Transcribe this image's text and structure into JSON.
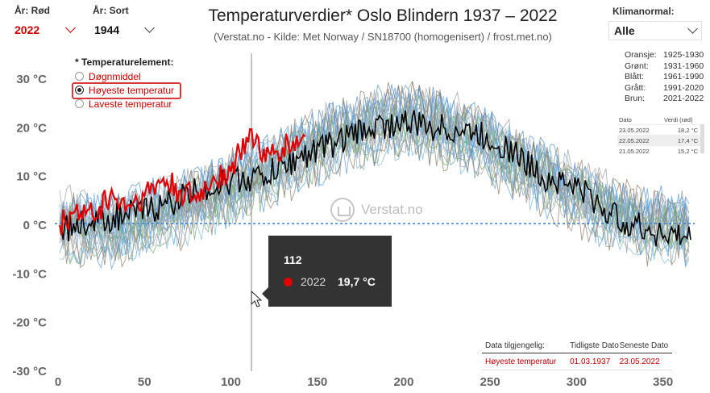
{
  "filters": {
    "red_year": {
      "label": "År: Rød",
      "value": "2022"
    },
    "black_year": {
      "label": "År: Sort",
      "value": "1944"
    },
    "climate_normal": {
      "label": "Klimanormal:",
      "value": "Alle"
    }
  },
  "header": {
    "title": "Temperaturverdier* Oslo Blindern 1937 – 2022",
    "subtitle": "(Verstat.no - Kilde: Met Norway / SN18700 (homogenisert) / frost.met.no)"
  },
  "element_selector": {
    "heading": "* Temperaturelement:",
    "options": [
      {
        "label": "Døgnmiddel",
        "selected": false
      },
      {
        "label": "Høyeste temperatur",
        "selected": true
      },
      {
        "label": "Laveste temperatur",
        "selected": false
      }
    ]
  },
  "normal_legend": [
    {
      "color": "Oransje:",
      "period": "1925-1930"
    },
    {
      "color": "Grønt:",
      "period": "1931-1960"
    },
    {
      "color": "Blått:",
      "period": "1961-1990"
    },
    {
      "color": "Grått:",
      "period": "1991-2020"
    },
    {
      "color": "Brun:",
      "period": "2021-2022"
    }
  ],
  "mini_table": {
    "headers": [
      "Dato",
      "Verdi (rød)"
    ],
    "rows": [
      {
        "date": "23.05.2022",
        "value": "18,2 °C"
      },
      {
        "date": "22.05.2022",
        "value": "17,4 °C"
      },
      {
        "date": "21.05.2022",
        "value": "15,2 °C"
      }
    ]
  },
  "watermark": "Verstat.no",
  "tooltip": {
    "day": "112",
    "year": "2022",
    "value": "19,7 °C"
  },
  "availability": {
    "headers": [
      "Data tilgjengelig:",
      "Tidligste Dato",
      "Seneste Dato"
    ],
    "element": "Høyeste temperatur",
    "earliest": "01.03.1937",
    "latest": "23.05.2022"
  },
  "colors": {
    "red_series": "#e00000",
    "black_series": "#000000",
    "accent": "#c00000",
    "zero_line": "#3d7fcf"
  },
  "chart_data": {
    "type": "line",
    "title": "Temperaturverdier* Oslo Blindern 1937 – 2022",
    "xlabel": "",
    "ylabel": "",
    "xlim": [
      0,
      366
    ],
    "ylim": [
      -30,
      35
    ],
    "x_ticks": [
      "0",
      "50",
      "100",
      "150",
      "200",
      "250",
      "300",
      "350"
    ],
    "y_ticks": [
      "30 °C",
      "20 °C",
      "10 °C",
      "0 °C",
      "-10 °C",
      "-20 °C",
      "-30 °C"
    ],
    "series": [
      {
        "name": "2022",
        "color": "#e00000",
        "x": [
          1,
          10,
          20,
          30,
          40,
          50,
          60,
          70,
          80,
          90,
          100,
          105,
          110,
          112,
          120,
          130,
          140,
          143
        ],
        "y": [
          0,
          3,
          2,
          6,
          4,
          6,
          9,
          7,
          5,
          10,
          11,
          15,
          17,
          19.7,
          13,
          16,
          17,
          18.2
        ]
      },
      {
        "name": "1944",
        "color": "#000000",
        "x": [
          1,
          20,
          40,
          60,
          80,
          100,
          120,
          140,
          160,
          180,
          200,
          220,
          240,
          260,
          280,
          300,
          320,
          340,
          366
        ],
        "y": [
          -1,
          1,
          2,
          4,
          7,
          9,
          10,
          14,
          17,
          20,
          21,
          20,
          19,
          16,
          10,
          8,
          2,
          -1,
          -3
        ]
      }
    ],
    "band_mean": {
      "x": [
        0,
        30,
        60,
        90,
        120,
        150,
        180,
        200,
        210,
        240,
        270,
        300,
        330,
        366
      ],
      "y": [
        0,
        -1,
        2,
        6,
        11,
        16,
        20,
        22,
        21,
        18,
        12,
        6,
        1,
        -1
      ]
    }
  }
}
